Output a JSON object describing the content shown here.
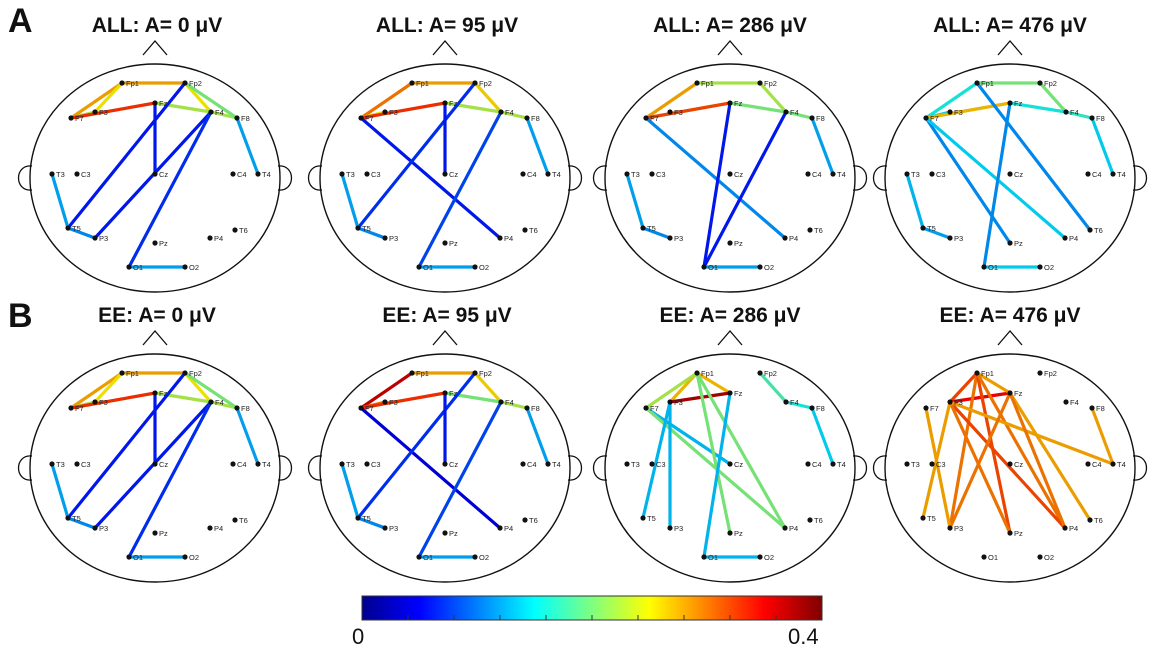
{
  "panels": [
    {
      "letter": "A"
    },
    {
      "letter": "B"
    }
  ],
  "electrodes": [
    "Fp1",
    "Fp2",
    "F7",
    "F3",
    "Fz",
    "F4",
    "F8",
    "T3",
    "C3",
    "Cz",
    "C4",
    "T4",
    "T5",
    "P3",
    "Pz",
    "P4",
    "T6",
    "O1",
    "O2"
  ],
  "heads": [
    {
      "row": 0,
      "col": 0,
      "title": "ALL: A= 0 μV",
      "edges": [
        [
          "Fp1",
          "Fp2",
          0.28
        ],
        [
          "Fp1",
          "F7",
          0.28
        ],
        [
          "Fp1",
          "F3",
          0.25
        ],
        [
          "F7",
          "F3",
          0.22
        ],
        [
          "F7",
          "Fz",
          0.33
        ],
        [
          "Fp2",
          "F4",
          0.25
        ],
        [
          "Fz",
          "F4",
          0.22
        ],
        [
          "F4",
          "F8",
          0.22
        ],
        [
          "Fp2",
          "F8",
          0.2
        ],
        [
          "F8",
          "T4",
          0.12
        ],
        [
          "Fp2",
          "T5",
          0.06
        ],
        [
          "Fz",
          "Cz",
          0.06
        ],
        [
          "F4",
          "P3",
          0.06
        ],
        [
          "F4",
          "O1",
          0.07
        ],
        [
          "O1",
          "O2",
          0.12
        ],
        [
          "T3",
          "T5",
          0.12
        ],
        [
          "T5",
          "P3",
          0.11
        ]
      ]
    },
    {
      "row": 0,
      "col": 1,
      "title": "ALL: A= 95 μV",
      "edges": [
        [
          "Fp1",
          "Fp2",
          0.28
        ],
        [
          "Fp1",
          "F7",
          0.3
        ],
        [
          "F7",
          "F3",
          0.25
        ],
        [
          "F7",
          "Fz",
          0.33
        ],
        [
          "Fp2",
          "F4",
          0.26
        ],
        [
          "Fz",
          "F4",
          0.22
        ],
        [
          "F4",
          "F8",
          0.22
        ],
        [
          "F8",
          "T4",
          0.12
        ],
        [
          "F7",
          "P4",
          0.06
        ],
        [
          "Fp2",
          "T5",
          0.07
        ],
        [
          "Fz",
          "Cz",
          0.06
        ],
        [
          "F4",
          "O1",
          0.08
        ],
        [
          "O1",
          "O2",
          0.12
        ],
        [
          "T3",
          "T5",
          0.12
        ],
        [
          "T5",
          "P3",
          0.11
        ]
      ]
    },
    {
      "row": 0,
      "col": 2,
      "title": "ALL: A= 286 μV",
      "edges": [
        [
          "Fp1",
          "Fp2",
          0.22
        ],
        [
          "Fp1",
          "F7",
          0.28
        ],
        [
          "F7",
          "Fz",
          0.32
        ],
        [
          "Fp2",
          "F4",
          0.22
        ],
        [
          "Fz",
          "F4",
          0.2
        ],
        [
          "F4",
          "F8",
          0.2
        ],
        [
          "F8",
          "T4",
          0.12
        ],
        [
          "F7",
          "P4",
          0.11
        ],
        [
          "Fz",
          "O1",
          0.06
        ],
        [
          "F4",
          "O1",
          0.06
        ],
        [
          "O1",
          "O2",
          0.12
        ],
        [
          "T3",
          "T5",
          0.12
        ],
        [
          "T5",
          "P3",
          0.11
        ]
      ]
    },
    {
      "row": 0,
      "col": 3,
      "title": "ALL: A= 476 μV",
      "edges": [
        [
          "Fp1",
          "Fp2",
          0.2
        ],
        [
          "Fp1",
          "F7",
          0.16
        ],
        [
          "F7",
          "F3",
          0.14
        ],
        [
          "F7",
          "Fz",
          0.27
        ],
        [
          "Fp2",
          "F4",
          0.2
        ],
        [
          "Fz",
          "F4",
          0.16
        ],
        [
          "F4",
          "F8",
          0.17
        ],
        [
          "F8",
          "T4",
          0.14
        ],
        [
          "F7",
          "Pz",
          0.11
        ],
        [
          "F7",
          "P4",
          0.14
        ],
        [
          "Fp1",
          "T6",
          0.11
        ],
        [
          "Fz",
          "O1",
          0.11
        ],
        [
          "O1",
          "O2",
          0.14
        ],
        [
          "T3",
          "T5",
          0.13
        ],
        [
          "T5",
          "P3",
          0.12
        ]
      ]
    },
    {
      "row": 1,
      "col": 0,
      "title": "EE: A= 0 μV",
      "edges": [
        [
          "Fp1",
          "Fp2",
          0.28
        ],
        [
          "Fp1",
          "F7",
          0.28
        ],
        [
          "Fp1",
          "F3",
          0.25
        ],
        [
          "F7",
          "F3",
          0.22
        ],
        [
          "F7",
          "Fz",
          0.33
        ],
        [
          "Fp2",
          "F4",
          0.25
        ],
        [
          "Fz",
          "F4",
          0.22
        ],
        [
          "F4",
          "F8",
          0.22
        ],
        [
          "Fp2",
          "F8",
          0.2
        ],
        [
          "F8",
          "T4",
          0.12
        ],
        [
          "Fp2",
          "T5",
          0.06
        ],
        [
          "Fz",
          "Cz",
          0.06
        ],
        [
          "F4",
          "P3",
          0.06
        ],
        [
          "F4",
          "O1",
          0.07
        ],
        [
          "O1",
          "O2",
          0.12
        ],
        [
          "T3",
          "T5",
          0.12
        ],
        [
          "T5",
          "P3",
          0.11
        ]
      ]
    },
    {
      "row": 1,
      "col": 1,
      "title": "EE: A= 95 μV",
      "edges": [
        [
          "Fp1",
          "Fp2",
          0.28
        ],
        [
          "Fp1",
          "F7",
          0.37
        ],
        [
          "F7",
          "F3",
          0.3
        ],
        [
          "F7",
          "Fz",
          0.33
        ],
        [
          "Fp2",
          "F4",
          0.26
        ],
        [
          "Fz",
          "F4",
          0.2
        ],
        [
          "F4",
          "F8",
          0.22
        ],
        [
          "F8",
          "T4",
          0.12
        ],
        [
          "F7",
          "P4",
          0.04
        ],
        [
          "Fp2",
          "T5",
          0.07
        ],
        [
          "Fz",
          "Cz",
          0.06
        ],
        [
          "F4",
          "O1",
          0.08
        ],
        [
          "O1",
          "O2",
          0.12
        ],
        [
          "T3",
          "T5",
          0.12
        ],
        [
          "T5",
          "P3",
          0.11
        ]
      ]
    },
    {
      "row": 1,
      "col": 2,
      "title": "EE: A= 286 μV",
      "edges": [
        [
          "Fp1",
          "Fz",
          0.27
        ],
        [
          "Fp1",
          "F3",
          0.27
        ],
        [
          "F3",
          "Fz",
          0.38
        ],
        [
          "Fp1",
          "F7",
          0.22
        ],
        [
          "F7",
          "Cz",
          0.13
        ],
        [
          "F7",
          "P4",
          0.2
        ],
        [
          "F3",
          "P3",
          0.13
        ],
        [
          "Fp1",
          "Pz",
          0.2
        ],
        [
          "Fp1",
          "P4",
          0.2
        ],
        [
          "F3",
          "T5",
          0.13
        ],
        [
          "Fp2",
          "F4",
          0.18
        ],
        [
          "F4",
          "F8",
          0.16
        ],
        [
          "F8",
          "T4",
          0.14
        ],
        [
          "Fz",
          "O1",
          0.13
        ],
        [
          "O1",
          "O2",
          0.13
        ]
      ]
    },
    {
      "row": 1,
      "col": 3,
      "title": "EE: A= 476 μV",
      "edges": [
        [
          "Fp1",
          "F3",
          0.32
        ],
        [
          "F3",
          "Fz",
          0.35
        ],
        [
          "Fp1",
          "Fz",
          0.28
        ],
        [
          "Fp1",
          "P3",
          0.3
        ],
        [
          "Fp1",
          "Pz",
          0.32
        ],
        [
          "Fp1",
          "P4",
          0.3
        ],
        [
          "F3",
          "P4",
          0.32
        ],
        [
          "F3",
          "Pz",
          0.3
        ],
        [
          "F3",
          "T5",
          0.28
        ],
        [
          "F3",
          "T4",
          0.28
        ],
        [
          "Fz",
          "P3",
          0.3
        ],
        [
          "Fz",
          "T6",
          0.28
        ],
        [
          "Fz",
          "P4",
          0.3
        ],
        [
          "F7",
          "P3",
          0.28
        ],
        [
          "F8",
          "T4",
          0.28
        ]
      ]
    }
  ],
  "colorbar": {
    "min_label": "0",
    "max_label": "0.4",
    "min": 0,
    "max": 0.4,
    "colormap": "jet"
  }
}
